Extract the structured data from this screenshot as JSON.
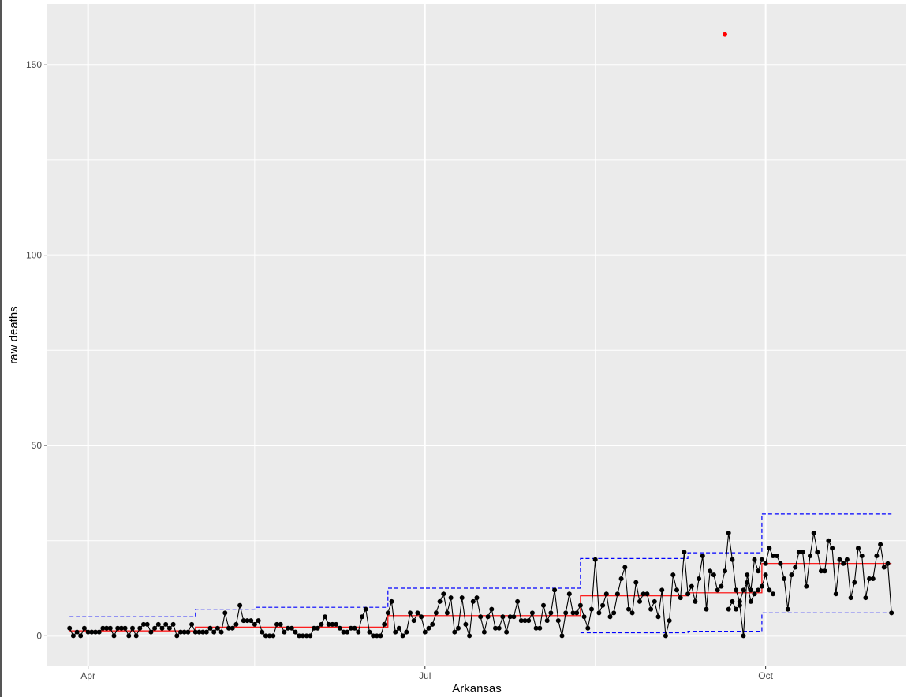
{
  "chart_data": {
    "type": "line",
    "title": "",
    "xlabel": "Arkansas",
    "ylabel": "raw deaths",
    "xlim": [
      "2020-03-21",
      "2020-11-08"
    ],
    "ylim": [
      -8,
      166
    ],
    "x_ticks": [
      {
        "date": "2020-04-01",
        "label": "Apr"
      },
      {
        "date": "2020-07-01",
        "label": "Jul"
      },
      {
        "date": "2020-10-01",
        "label": "Oct"
      }
    ],
    "x_minor_ticks": [
      "2020-05-16",
      "2020-08-16"
    ],
    "y_ticks": [
      0,
      50,
      100,
      150
    ],
    "y_minor_ticks": [
      25,
      75,
      125
    ],
    "grid": true,
    "legend": "none",
    "colors": {
      "panel": "#ebebeb",
      "grid": "#ffffff",
      "observed": "#000000",
      "center_line": "#ff0000",
      "control_limits": "#0000ff",
      "outlier": "#ff0000"
    },
    "series": [
      {
        "role": "observed",
        "kind": "line+points",
        "start_date": "2020-03-27",
        "values": [
          2,
          0,
          1,
          0,
          2,
          1,
          1,
          1,
          1,
          2,
          2,
          2,
          0,
          2,
          2,
          2,
          0,
          2,
          0,
          2,
          3,
          3,
          1,
          2,
          3,
          2,
          3,
          2,
          3,
          0,
          1,
          1,
          1,
          3,
          1,
          1,
          1,
          1,
          2,
          1,
          2,
          1,
          6,
          2,
          2,
          3,
          8,
          4,
          4,
          4,
          3,
          4,
          1,
          0,
          0,
          0,
          3,
          3,
          1,
          2,
          2,
          1,
          0,
          0,
          0,
          0,
          2,
          2,
          3,
          5,
          3,
          3,
          3,
          2,
          1,
          1,
          2,
          2,
          1,
          5,
          7,
          1,
          0,
          0,
          0,
          3,
          6,
          9,
          1,
          2,
          0,
          1,
          6,
          4,
          6,
          5,
          1,
          2,
          3,
          6,
          9,
          11,
          6,
          10,
          1,
          2,
          10,
          3,
          0,
          9,
          10,
          5,
          1,
          5,
          7,
          2,
          2,
          5,
          1,
          5,
          5,
          9,
          4,
          4,
          4,
          6,
          2,
          2,
          8,
          4,
          6,
          12,
          4,
          0,
          6,
          11,
          6,
          6,
          8,
          5,
          2,
          7,
          20,
          6,
          8,
          11,
          5,
          6,
          11,
          15,
          18,
          7,
          6,
          14,
          9,
          11,
          11,
          7,
          9,
          5,
          12,
          0,
          4,
          16,
          12,
          10,
          22,
          11,
          13,
          9,
          15,
          21,
          7,
          17,
          16,
          12,
          13,
          17,
          27,
          20,
          12,
          9,
          12,
          14,
          9,
          11,
          12,
          13,
          16,
          12,
          11
        ],
        "gap_start": "2020-09-20",
        "gap_values": [
          158
        ],
        "second_start_date": "2020-09-21",
        "second_values": [
          7,
          9,
          7,
          8,
          0,
          16,
          12,
          20,
          17,
          20,
          19,
          23,
          21,
          21,
          19,
          15,
          7,
          16,
          18,
          22,
          22,
          13,
          21,
          27,
          22,
          17,
          17,
          25,
          23,
          11,
          20,
          19,
          20,
          10,
          14,
          23,
          21,
          10,
          15,
          15,
          21,
          24,
          18,
          19,
          6
        ]
      },
      {
        "role": "outlier",
        "kind": "point",
        "x": "2020-09-20",
        "y": 158
      },
      {
        "role": "center_line",
        "kind": "step",
        "segments": [
          {
            "from": "2020-03-27",
            "to": "2020-04-30",
            "y": 1.3
          },
          {
            "from": "2020-04-30",
            "to": "2020-06-21",
            "y": 2.3
          },
          {
            "from": "2020-06-21",
            "to": "2020-08-12",
            "y": 5.3
          },
          {
            "from": "2020-08-12",
            "to": "2020-09-10",
            "y": 10.5
          },
          {
            "from": "2020-09-10",
            "to": "2020-09-30",
            "y": 11.3
          },
          {
            "from": "2020-09-30",
            "to": "2020-11-04",
            "y": 19
          }
        ]
      },
      {
        "role": "upper_limit",
        "kind": "step-dashed",
        "segments": [
          {
            "from": "2020-03-27",
            "to": "2020-04-30",
            "y": 5
          },
          {
            "from": "2020-04-30",
            "to": "2020-05-16",
            "y": 7
          },
          {
            "from": "2020-05-16",
            "to": "2020-06-21",
            "y": 7.5
          },
          {
            "from": "2020-06-21",
            "to": "2020-08-12",
            "y": 12.5
          },
          {
            "from": "2020-08-12",
            "to": "2020-09-10",
            "y": 20.3
          },
          {
            "from": "2020-09-10",
            "to": "2020-09-30",
            "y": 21.8
          },
          {
            "from": "2020-09-30",
            "to": "2020-11-04",
            "y": 32
          }
        ]
      },
      {
        "role": "lower_limit",
        "kind": "step-dashed",
        "segments": [
          {
            "from": "2020-08-12",
            "to": "2020-09-10",
            "y": 0.8
          },
          {
            "from": "2020-09-10",
            "to": "2020-09-30",
            "y": 1.2
          },
          {
            "from": "2020-09-30",
            "to": "2020-11-04",
            "y": 6
          }
        ]
      }
    ]
  }
}
